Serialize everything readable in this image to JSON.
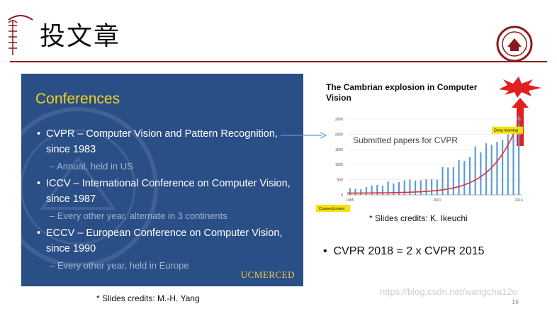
{
  "header": {
    "title": "投文章",
    "colors": {
      "accent": "#8b1a1a"
    }
  },
  "left_slide": {
    "heading": "Conferences",
    "bullets": [
      {
        "text": "CVPR – Computer Vision and Pattern Recognition, since 1983",
        "sub": "– Annual, held in US"
      },
      {
        "text": "ICCV – International Conference on Computer Vision, since 1987",
        "sub": "– Every other year, alternate in 3 continents"
      },
      {
        "text": "ECCV – European Conference on Computer Vision, since 1990",
        "sub": "– Every other year, held in Europe"
      }
    ],
    "logo_text": "UCMERCED",
    "colors": {
      "background": "#2a4f86",
      "heading": "#f2d31d"
    }
  },
  "left_credit": "* Slides credits: M.-H. Yang",
  "right_credit": "* Slides credits: K. Ikeuchi",
  "bottom_bullet": "CVPR 2018 = 2 x CVPR 2015",
  "watermark": "https://blog.csdn.net/wangcha12o",
  "page_number": "16",
  "chart_data": {
    "type": "bar",
    "title": "The Cambrian explosion in Computer Vision",
    "annotation": "Submitted papers for CVPR",
    "labels": {
      "left": "Connectionism",
      "right": "Deep learning"
    },
    "x_ticks": [
      "1985",
      "2001",
      "2016"
    ],
    "y_ticks": [
      "0",
      "500",
      "1000",
      "1500",
      "2000",
      "2500"
    ],
    "ylim": [
      0,
      2500
    ],
    "categories": [
      "1985",
      "1986",
      "1987",
      "1988",
      "1989",
      "1990",
      "1991",
      "1992",
      "1993",
      "1994",
      "1995",
      "1996",
      "1997",
      "1998",
      "1999",
      "2000",
      "2001",
      "2002",
      "2003",
      "2004",
      "2005",
      "2006",
      "2007",
      "2008",
      "2009",
      "2010",
      "2011",
      "2012",
      "2013",
      "2014",
      "2015",
      "2016"
    ],
    "values": [
      220,
      200,
      190,
      260,
      310,
      330,
      300,
      450,
      380,
      420,
      480,
      500,
      470,
      480,
      510,
      520,
      500,
      920,
      900,
      920,
      1150,
      1120,
      1250,
      1600,
      1400,
      1700,
      1650,
      1750,
      1800,
      2000,
      2100,
      2600
    ],
    "trend_color": "#e03030",
    "bar_color": "#5b9bd5"
  }
}
